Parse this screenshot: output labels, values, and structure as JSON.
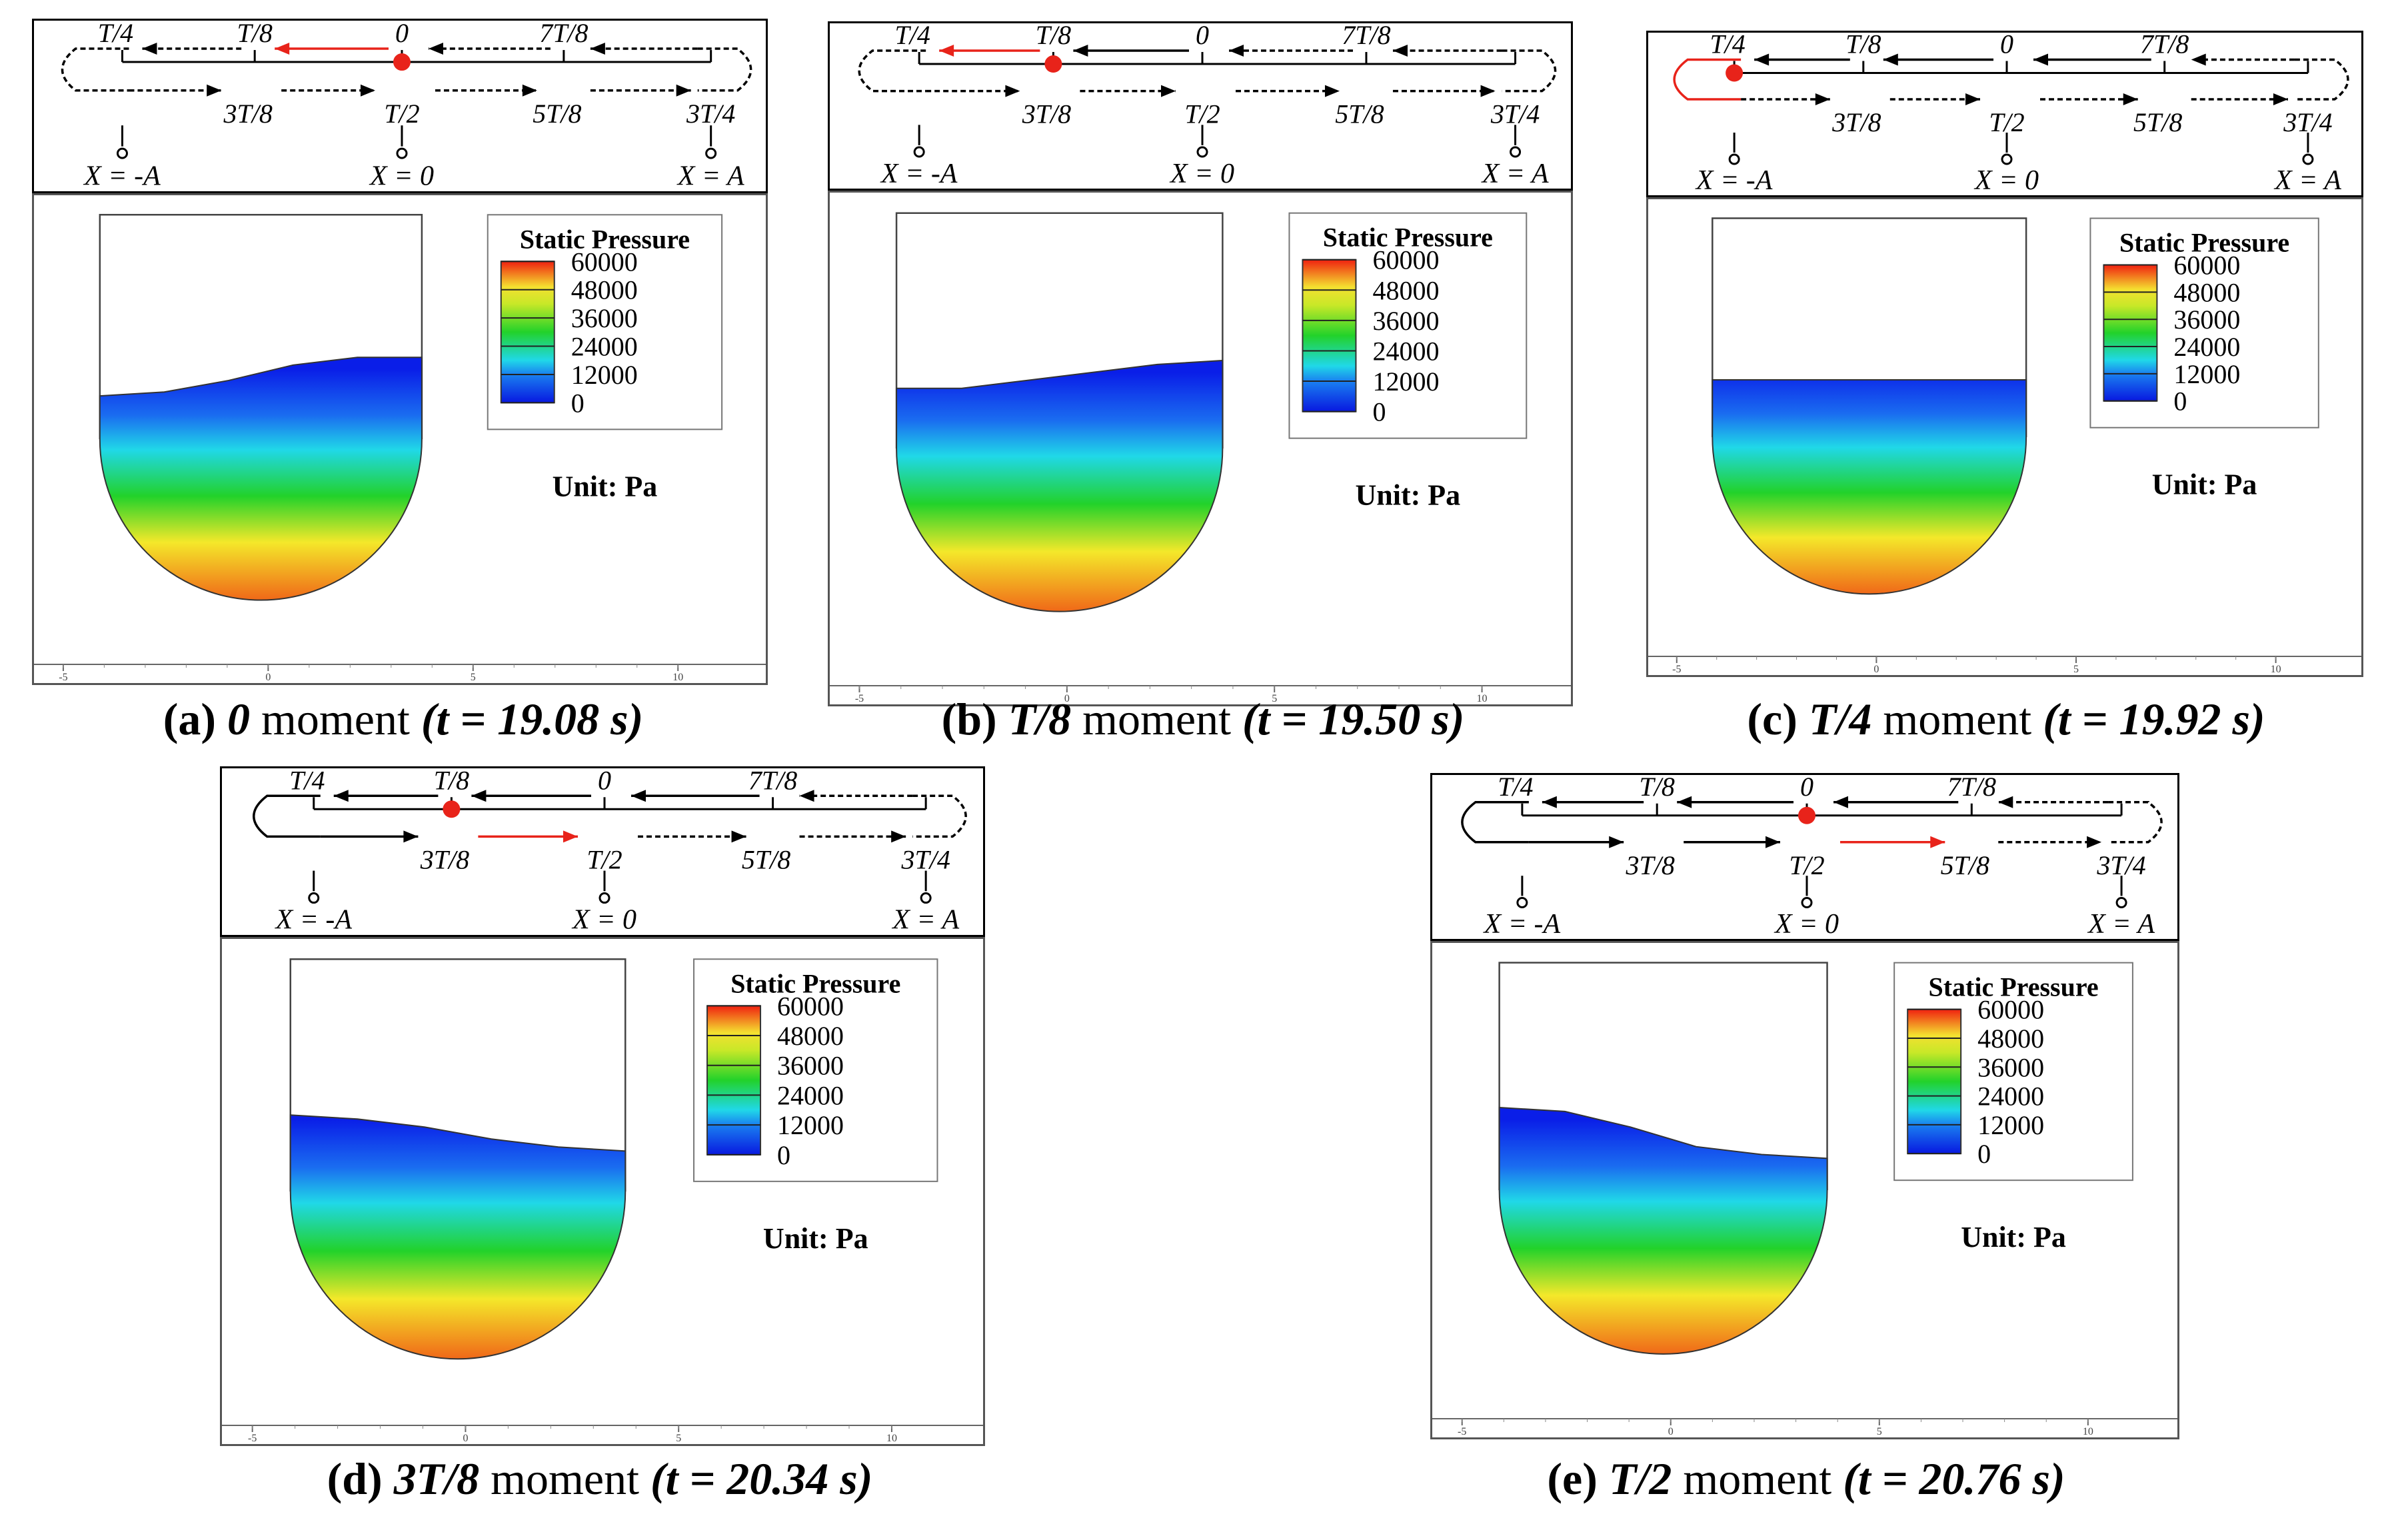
{
  "schematic_labels": {
    "top": [
      "T/4",
      "T/8",
      "0",
      "7T/8"
    ],
    "bottom": [
      "3T/8",
      "T/2",
      "5T/8",
      "3T/4"
    ],
    "positions": [
      "X = -A",
      "X = 0",
      "X = A"
    ]
  },
  "legend": {
    "title": "Static Pressure",
    "ticks": [
      "60000",
      "48000",
      "36000",
      "24000",
      "12000",
      "0"
    ],
    "unit": "Unit: Pa"
  },
  "axis_ticks": [
    "-5",
    "0",
    "5",
    "10"
  ],
  "colors": {
    "red_marker": "#e8231a",
    "blue": "#0a1ee8",
    "cyan": "#20d8e8",
    "green": "#22d22a",
    "yellow": "#f4e82a",
    "orange": "#f06818"
  },
  "panels": [
    {
      "id": "a",
      "caption": {
        "label": "(a)",
        "phase": "0",
        "word": "moment",
        "time": "(t = 19.08 s)"
      },
      "marker": "0",
      "marker_row": "top",
      "active_arrow": "T/8-0"
    },
    {
      "id": "b",
      "caption": {
        "label": "(b)",
        "phase": "T/8",
        "word": "moment",
        "time": "(t = 19.50 s)"
      },
      "marker": "T/8",
      "marker_row": "top",
      "active_arrow": "T/4-T/8"
    },
    {
      "id": "c",
      "caption": {
        "label": "(c)",
        "phase": "T/4",
        "word": "moment",
        "time": "(t = 19.92 s)"
      },
      "marker": "T/4",
      "marker_row": "top",
      "active_arrow": "loop-left"
    },
    {
      "id": "d",
      "caption": {
        "label": "(d)",
        "phase": "3T/8",
        "word": "moment",
        "time": "(t = 20.34 s)"
      },
      "marker": "T/8",
      "marker_row": "top",
      "active_arrow": "3T/8-T/2"
    },
    {
      "id": "e",
      "caption": {
        "label": "(e)",
        "phase": "T/2",
        "word": "moment",
        "time": "(t = 20.76 s)"
      },
      "marker": "0",
      "marker_row": "top",
      "active_arrow": "T/2-5T/8"
    }
  ]
}
